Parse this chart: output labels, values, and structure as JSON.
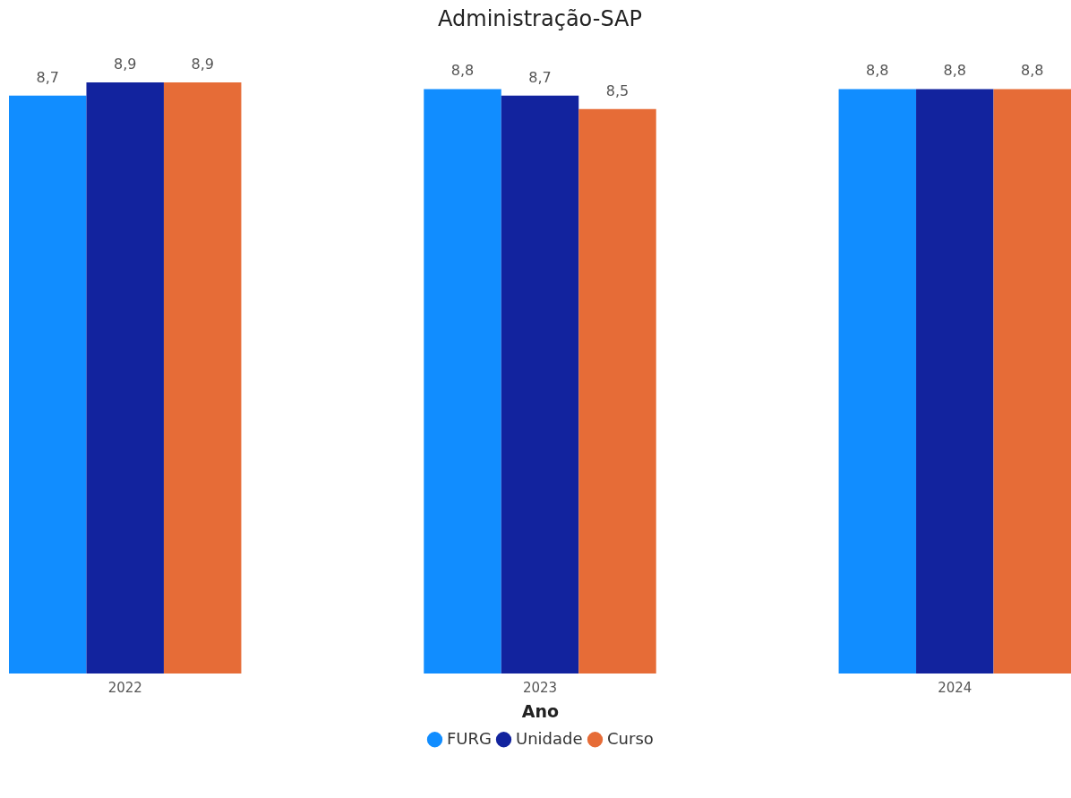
{
  "chart_data": {
    "type": "bar",
    "title": "Administração-SAP",
    "xlabel": "Ano",
    "categories": [
      "2022",
      "2023",
      "2024"
    ],
    "series": [
      {
        "name": "FURG",
        "color": "#118dff",
        "values": [
          8.7,
          8.8,
          8.8
        ],
        "value_labels": [
          "8,7",
          "8,8",
          "8,8"
        ]
      },
      {
        "name": "Unidade",
        "color": "#12239e",
        "values": [
          8.9,
          8.7,
          8.8
        ],
        "value_labels": [
          "8,9",
          "8,7",
          "8,8"
        ]
      },
      {
        "name": "Curso",
        "color": "#e66c37",
        "values": [
          8.9,
          8.5,
          8.8
        ],
        "value_labels": [
          "8,9",
          "8,5",
          "8,8"
        ]
      }
    ],
    "legend": "bottom",
    "tick_labels": "x"
  }
}
